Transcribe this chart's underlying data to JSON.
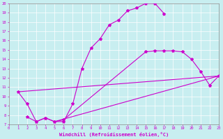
{
  "bg_color": "#c8eef0",
  "line_color": "#cc00cc",
  "xlim": [
    0,
    23
  ],
  "ylim": [
    7,
    20
  ],
  "xticks": [
    0,
    1,
    2,
    3,
    4,
    5,
    6,
    7,
    8,
    9,
    10,
    11,
    12,
    13,
    14,
    15,
    16,
    17,
    18,
    19,
    20,
    21,
    22,
    23
  ],
  "yticks": [
    7,
    8,
    9,
    10,
    11,
    12,
    13,
    14,
    15,
    16,
    17,
    18,
    19,
    20
  ],
  "xlabel": "Windchill (Refroidissement éolien,°C)",
  "curve1_x": [
    1,
    2,
    3,
    4,
    5,
    6,
    7,
    8,
    9,
    10,
    11,
    12,
    13,
    14,
    15,
    16,
    17
  ],
  "curve1_y": [
    10.5,
    9.2,
    7.3,
    7.7,
    7.3,
    7.3,
    9.2,
    13.0,
    15.2,
    16.2,
    17.7,
    18.2,
    19.2,
    19.5,
    20.0,
    20.0,
    18.9
  ],
  "curve2_x": [
    2,
    3,
    4,
    5,
    6,
    15,
    16,
    17,
    18,
    19,
    20,
    21,
    22,
    23
  ],
  "curve2_y": [
    7.8,
    7.3,
    7.7,
    7.3,
    7.5,
    14.8,
    14.9,
    14.9,
    14.9,
    14.8,
    14.0,
    12.7,
    11.2,
    12.2
  ],
  "line1_x": [
    1,
    23
  ],
  "line1_y": [
    10.5,
    12.2
  ],
  "line2_x": [
    5,
    23
  ],
  "line2_y": [
    7.3,
    12.2
  ],
  "figsize": [
    3.2,
    2.0
  ],
  "dpi": 100
}
